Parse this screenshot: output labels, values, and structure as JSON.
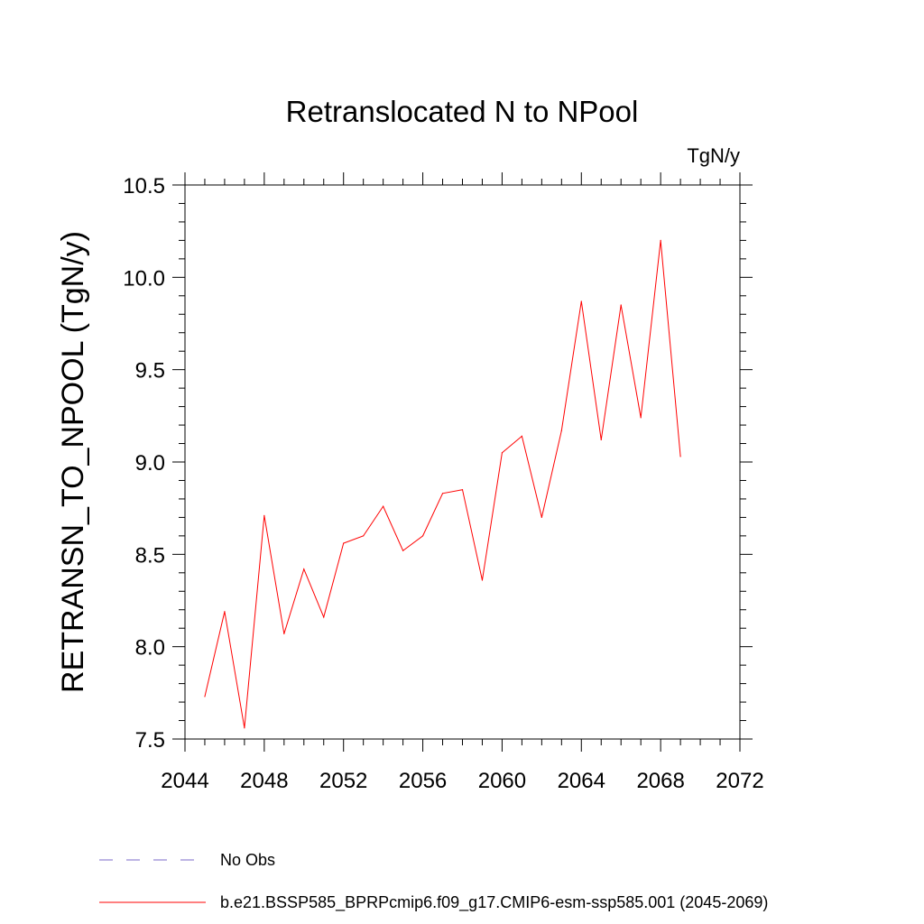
{
  "chart_data": {
    "type": "line",
    "title": "Retranslocated N to NPool",
    "units_label": "TgN/y",
    "xlabel": "",
    "ylabel": "RETRANSN_TO_NPOOL  (TgN/y)",
    "xlim": [
      2044,
      2072
    ],
    "ylim": [
      7.5,
      10.5
    ],
    "x_ticks": [
      2044,
      2048,
      2052,
      2056,
      2060,
      2064,
      2068,
      2072
    ],
    "x_tick_labels": [
      "2044",
      "2048",
      "2052",
      "2056",
      "2060",
      "2064",
      "2068",
      "2072"
    ],
    "y_ticks": [
      7.5,
      8.0,
      8.5,
      9.0,
      9.5,
      10.0,
      10.5
    ],
    "y_tick_labels": [
      "7.5",
      "8.0",
      "8.5",
      "9.0",
      "9.5",
      "10.0",
      "10.5"
    ],
    "grid": false,
    "legend_position": "bottom",
    "series": [
      {
        "name": "b.e21.BSSP585_BPRPcmip6.f09_g17.CMIP6-esm-ssp585.001 (2045-2069)",
        "color": "#ff0000",
        "style": "solid",
        "x": [
          2045,
          2046,
          2047,
          2048,
          2049,
          2050,
          2051,
          2052,
          2053,
          2054,
          2055,
          2056,
          2057,
          2058,
          2059,
          2060,
          2061,
          2062,
          2063,
          2064,
          2065,
          2066,
          2067,
          2068,
          2069
        ],
        "values": [
          7.73,
          8.19,
          7.56,
          8.71,
          8.07,
          8.42,
          8.16,
          8.56,
          8.6,
          8.76,
          8.52,
          8.6,
          8.83,
          8.85,
          8.36,
          9.05,
          9.14,
          8.7,
          9.17,
          9.87,
          9.12,
          9.85,
          9.24,
          10.2,
          9.03
        ]
      }
    ],
    "legend": [
      {
        "label": "No Obs",
        "color": "#7b68c8",
        "style": "dashed"
      },
      {
        "label": "b.e21.BSSP585_BPRPcmip6.f09_g17.CMIP6-esm-ssp585.001 (2045-2069)",
        "color": "#ff0000",
        "style": "solid"
      }
    ]
  }
}
